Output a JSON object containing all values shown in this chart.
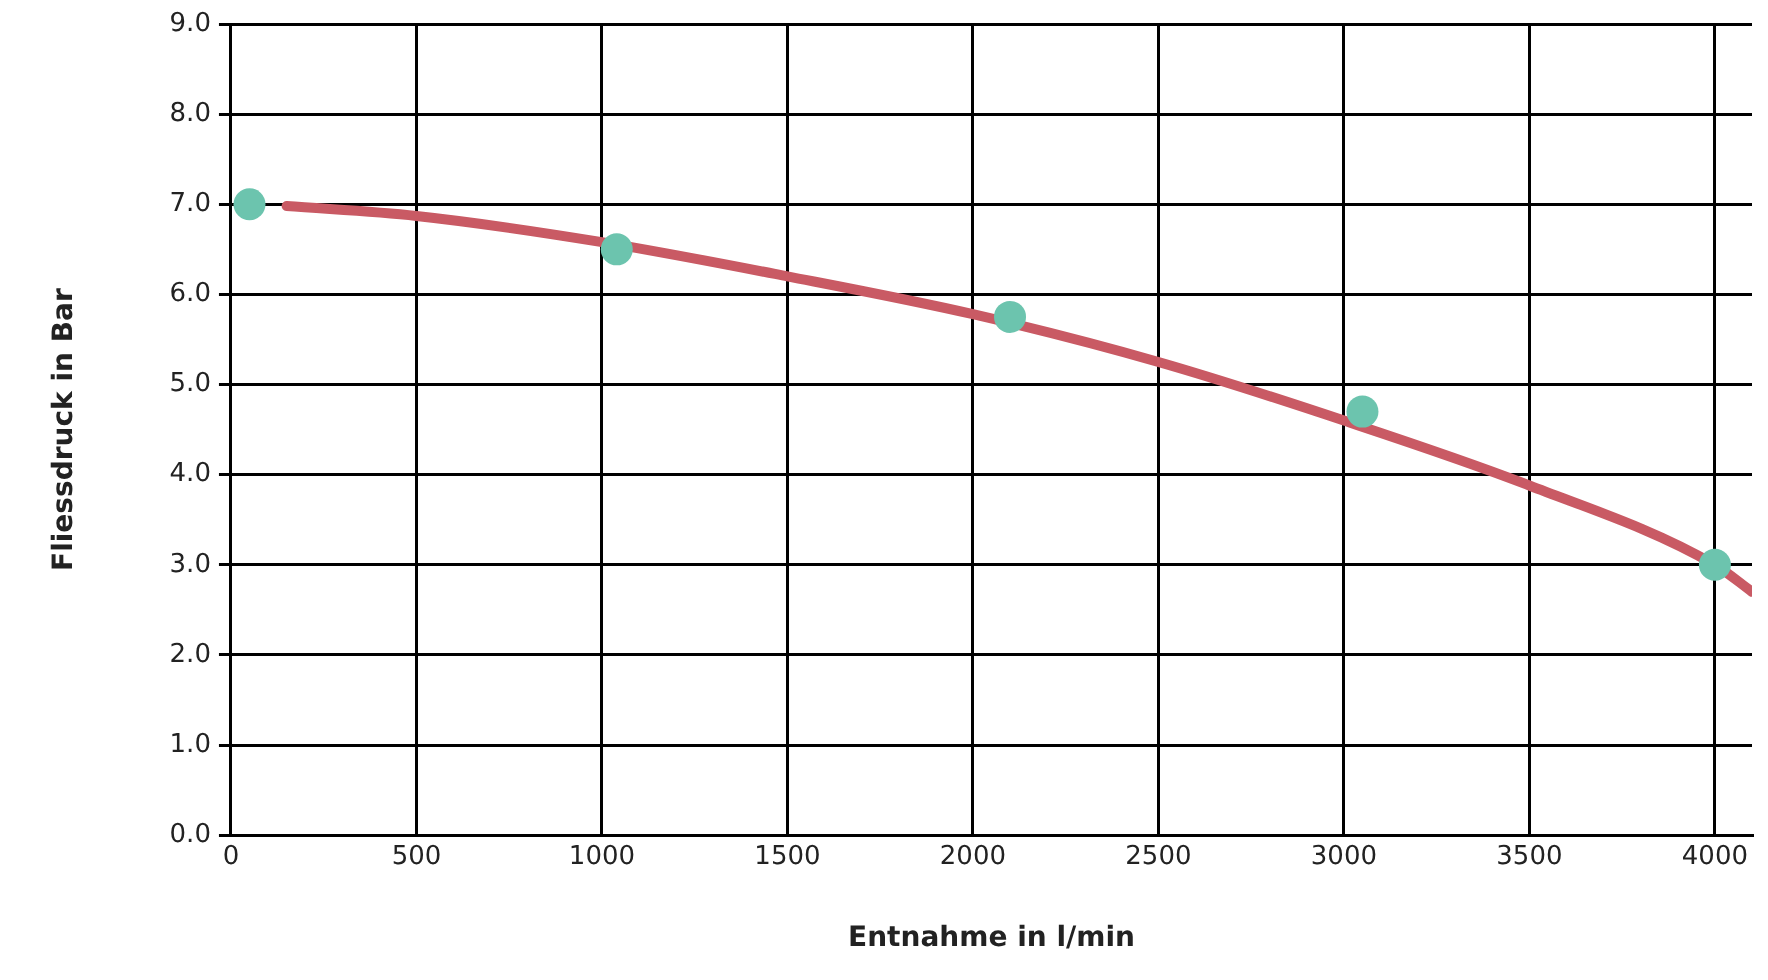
{
  "chart_data": {
    "type": "line",
    "xlabel": "Entnahme in l/min",
    "ylabel": "Fliessdruck in Bar",
    "xlim": [
      0,
      4100
    ],
    "ylim": [
      0,
      9
    ],
    "xticks": [
      0,
      500,
      1000,
      1500,
      2000,
      2500,
      3000,
      3500,
      4000
    ],
    "yticks": [
      {
        "value": 0,
        "label": "0.0"
      },
      {
        "value": 1,
        "label": "1.0"
      },
      {
        "value": 2,
        "label": "2.0"
      },
      {
        "value": 3,
        "label": "3.0"
      },
      {
        "value": 4,
        "label": "4.0"
      },
      {
        "value": 5,
        "label": "5.0"
      },
      {
        "value": 6,
        "label": "6.0"
      },
      {
        "value": 7,
        "label": "7.0"
      },
      {
        "value": 8,
        "label": "8.0"
      },
      {
        "value": 9,
        "label": "9.0"
      }
    ],
    "grid": true,
    "legend": false,
    "series": [
      {
        "type": "line",
        "color": "#c95a64",
        "marker": "none",
        "x": [
          150,
          500,
          1000,
          1500,
          2000,
          2500,
          3000,
          3500,
          4000,
          4100
        ],
        "values": [
          6.98,
          6.87,
          6.58,
          6.2,
          5.78,
          5.25,
          4.6,
          3.88,
          3.0,
          2.7
        ]
      },
      {
        "type": "scatter",
        "color": "#6cc4ae",
        "marker": "circle",
        "x": [
          50,
          1040,
          2100,
          3050,
          4000
        ],
        "values": [
          7.0,
          6.5,
          5.75,
          4.7,
          3.0
        ]
      }
    ]
  }
}
